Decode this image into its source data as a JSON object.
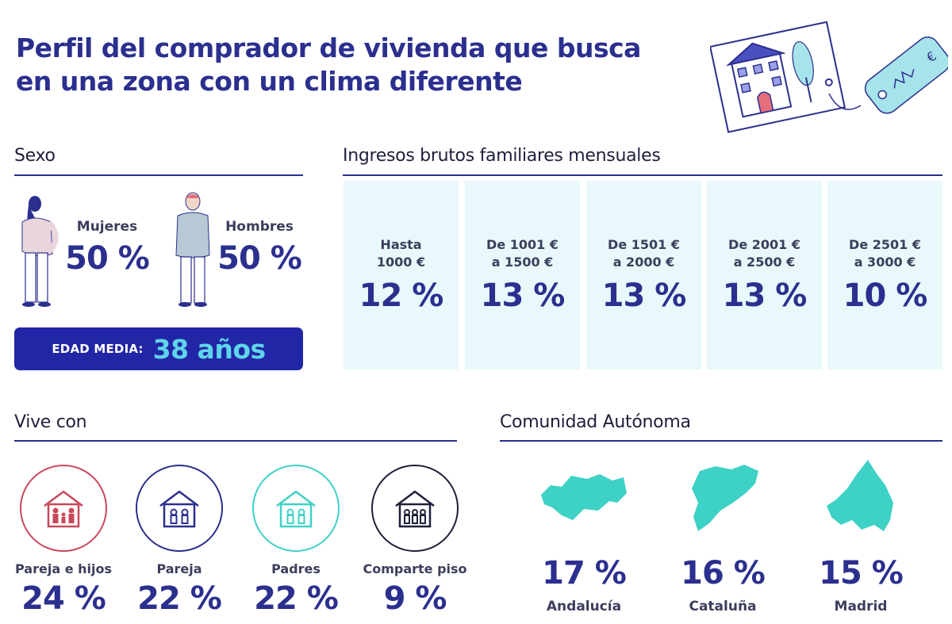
{
  "header": {
    "title_line1": "Perfil del comprador de vivienda que busca",
    "title_line2": "en una zona con un clima diferente"
  },
  "colors": {
    "primary": "#2b2f8e",
    "accent_bar": "#2126a6",
    "accent_text": "#5fd5ea",
    "income_bg": "#e8f8fb",
    "map_teal": "#3ed1c6",
    "circle_red": "#c9485b",
    "circle_teal": "#3ed1c6"
  },
  "sexo": {
    "title": "Sexo",
    "mujeres_label": "Mujeres",
    "mujeres_value": "50 %",
    "hombres_label": "Hombres",
    "hombres_value": "50 %",
    "edad_label": "EDAD MEDIA:",
    "edad_value": "38 años"
  },
  "ingresos": {
    "title": "Ingresos brutos familiares mensuales",
    "items": [
      {
        "line1": "Hasta",
        "line2": "1000 €",
        "value": "12 %"
      },
      {
        "line1": "De 1001 €",
        "line2": "a 1500 €",
        "value": "13 %"
      },
      {
        "line1": "De 1501 €",
        "line2": "a 2000 €",
        "value": "13 %"
      },
      {
        "line1": "De 2001 €",
        "line2": "a 2500 €",
        "value": "13 %"
      },
      {
        "line1": "De 2501 €",
        "line2": "a 3000 €",
        "value": "10 %"
      }
    ]
  },
  "vive_con": {
    "title": "Vive con",
    "items": [
      {
        "label": "Pareja e hijos",
        "value": "24 %",
        "icon": "house-family-icon"
      },
      {
        "label": "Pareja",
        "value": "22 %",
        "icon": "house-couple-icon"
      },
      {
        "label": "Padres",
        "value": "22 %",
        "icon": "house-parents-icon"
      },
      {
        "label": "Comparte piso",
        "value": "9 %",
        "icon": "house-shared-icon"
      }
    ]
  },
  "comunidad": {
    "title": "Comunidad Autónoma",
    "items": [
      {
        "label": "Andalucía",
        "value": "17 %",
        "icon": "andalucia-map-icon"
      },
      {
        "label": "Cataluña",
        "value": "16 %",
        "icon": "cataluna-map-icon"
      },
      {
        "label": "Madrid",
        "value": "15 %",
        "icon": "madrid-map-icon"
      }
    ]
  }
}
